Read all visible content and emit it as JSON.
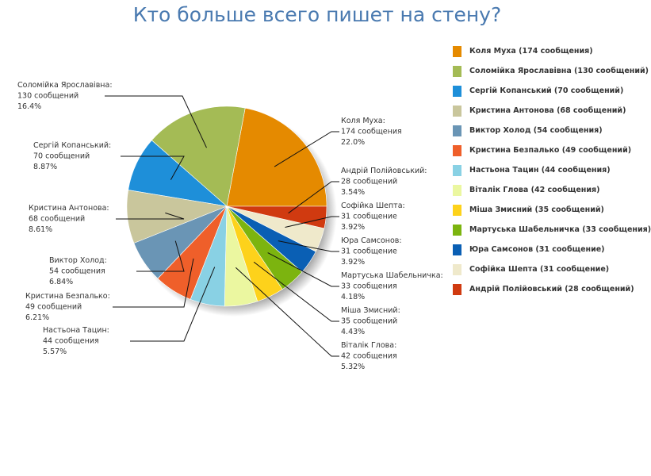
{
  "chart_data": {
    "type": "pie",
    "title": "Кто больше всего пишет на стену?",
    "slices": [
      {
        "color": "#e58a00",
        "value": 174,
        "label": [
          "Коля Муха:",
          "174 сообщения",
          "22.0%"
        ],
        "legend": "Коля Муха (174 сообщения)"
      },
      {
        "color": "#a4bb55",
        "value": 130,
        "label": [
          "Соломійка Ярославівна:",
          "130 сообщений",
          "16.4%"
        ],
        "legend": "Соломійка Ярославівна (130 сообщений)"
      },
      {
        "color": "#1e8fd9",
        "value": 70,
        "label": [
          "Сергій Копанський:",
          "70 сообщений",
          "8.87%"
        ],
        "legend": "Сергій Копанський (70 сообщений)"
      },
      {
        "color": "#c9c69c",
        "value": 68,
        "label": [
          "Кристина Антонова:",
          "68 сообщений",
          "8.61%"
        ],
        "legend": "Кристина Антонова (68 сообщений)"
      },
      {
        "color": "#6a95b5",
        "value": 54,
        "label": [
          "Виктор Холод:",
          "54 сообщения",
          "6.84%"
        ],
        "legend": "Виктор Холод (54 сообщения)"
      },
      {
        "color": "#ef5f2a",
        "value": 49,
        "label": [
          "Кристина Безпалько:",
          "49 сообщений",
          "6.21%"
        ],
        "legend": "Кристина Безпалько (49 сообщений)"
      },
      {
        "color": "#89d1e4",
        "value": 44,
        "label": [
          "Настьона Тацин:",
          "44 сообщения",
          "5.57%"
        ],
        "legend": "Настьона Тацин (44 сообщения)"
      },
      {
        "color": "#ebf7a0",
        "value": 42,
        "label": [
          "Віталік Глова:",
          "42 сообщения",
          "5.32%"
        ],
        "legend": "Віталік Глова (42 сообщения)"
      },
      {
        "color": "#fdd21b",
        "value": 35,
        "label": [
          "Міша Змисний:",
          "35 сообщений",
          "4.43%"
        ],
        "legend": "Міша Змисний (35 сообщений)"
      },
      {
        "color": "#7cb40f",
        "value": 33,
        "label": [
          "Мартуська Шабельничка:",
          "33 сообщения",
          "4.18%"
        ],
        "legend": "Мартуська Шабельничка (33 сообщения)"
      },
      {
        "color": "#0a5fb4",
        "value": 31,
        "label": [
          "Юра Самсонов:",
          "31 сообщение",
          "3.92%"
        ],
        "legend": "Юра Самсонов (31 сообщение)"
      },
      {
        "color": "#efe9cb",
        "value": 31,
        "label": [
          "Софійка Шепта:",
          "31 сообщение",
          "3.92%"
        ],
        "legend": "Софійка Шепта (31 сообщение)"
      },
      {
        "color": "#d03a10",
        "value": 28,
        "label": [
          "Андрій Полійовський:",
          "28 сообщений",
          "3.54%"
        ],
        "legend": "Андрій Полійовський (28 сообщений)"
      }
    ],
    "legend_position": "right"
  }
}
